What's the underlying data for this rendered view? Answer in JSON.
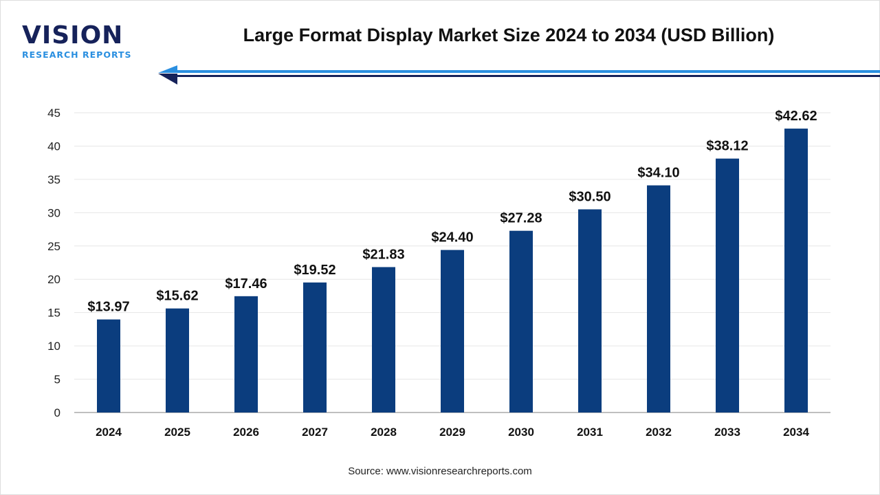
{
  "logo": {
    "main": "VISION",
    "sub": "RESEARCH REPORTS"
  },
  "source": "Source: www.visionresearchreports.com",
  "colors": {
    "bar": "#0b3d7e",
    "accent": "#2a8fe0",
    "dark_blue": "#16225a"
  },
  "chart_data": {
    "type": "bar",
    "title": "Large Format Display Market Size 2024 to 2034 (USD Billion)",
    "xlabel": "",
    "ylabel": "",
    "categories": [
      "2024",
      "2025",
      "2026",
      "2027",
      "2028",
      "2029",
      "2030",
      "2031",
      "2032",
      "2033",
      "2034"
    ],
    "values": [
      13.97,
      15.62,
      17.46,
      19.52,
      21.83,
      24.4,
      27.28,
      30.5,
      34.1,
      38.12,
      42.62
    ],
    "data_labels": [
      "$13.97",
      "$15.62",
      "$17.46",
      "$19.52",
      "$21.83",
      "$24.40",
      "$27.28",
      "$30.50",
      "$34.10",
      "$38.12",
      "$42.62"
    ],
    "ylim": [
      0,
      45
    ],
    "yticks": [
      0,
      5,
      10,
      15,
      20,
      25,
      30,
      35,
      40,
      45
    ],
    "grid": true,
    "legend": "none"
  }
}
